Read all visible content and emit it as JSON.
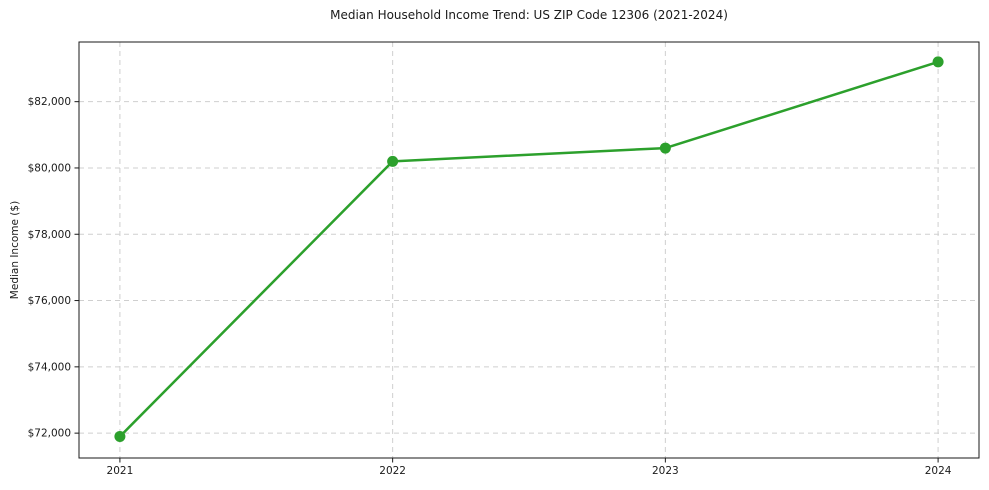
{
  "chart_data": {
    "type": "line",
    "title": "Median Household Income Trend: US ZIP Code 12306 (2021-2024)",
    "xlabel": "",
    "ylabel": "Median Income ($)",
    "x": [
      2021,
      2022,
      2023,
      2024
    ],
    "values": [
      71900,
      80200,
      80600,
      83200
    ],
    "x_tick_labels": [
      "2021",
      "2022",
      "2023",
      "2024"
    ],
    "y_ticks": [
      72000,
      74000,
      76000,
      78000,
      80000,
      82000
    ],
    "y_tick_labels": [
      "$72,000",
      "$74,000",
      "$76,000",
      "$78,000",
      "$80,000",
      "$82,000"
    ],
    "xlim": [
      2020.85,
      2024.15
    ],
    "ylim": [
      71250,
      83800
    ],
    "grid": true,
    "grid_style": "dashed",
    "grid_color": "#cfcfcf",
    "line_color": "#2ca02c",
    "marker": "circle",
    "marker_size": 11,
    "line_width": 2.5,
    "spine_color": "#1a1a1a",
    "legend": null
  }
}
